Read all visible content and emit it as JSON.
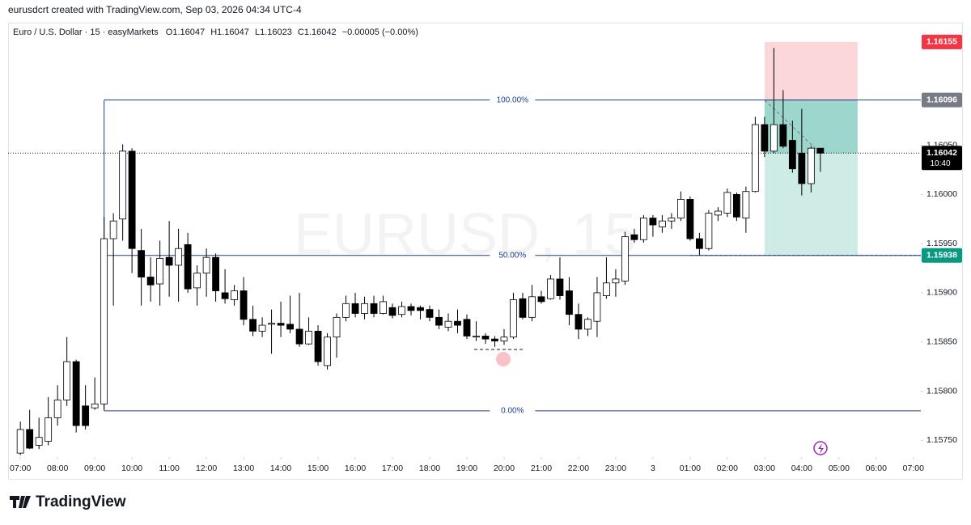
{
  "header": "eurusdcrt created with TradingView.com, Sep 03, 2026 04:34 UTC-4",
  "footer": "TradingView",
  "chart_data": {
    "type": "candlestick",
    "legend_symbol": "Euro / U.S. Dollar · 15 · easyMarkets",
    "legend_values": [
      "O1.16047",
      "H1.16047",
      "L1.16023",
      "C1.16042",
      "−0.00005 (−0.00%)"
    ],
    "watermark": "EURUSD, 15",
    "x": [
      7,
      7.25,
      7.5,
      7.75,
      8,
      8.25,
      8.5,
      8.75,
      9,
      9.25,
      9.5,
      9.75,
      10,
      10.25,
      10.5,
      10.75,
      11,
      11.25,
      11.5,
      11.75,
      12,
      12.25,
      12.5,
      12.75,
      13,
      13.25,
      13.5,
      13.75,
      14,
      14.25,
      14.5,
      14.75,
      15,
      15.25,
      15.5,
      15.75,
      16,
      16.25,
      16.5,
      16.75,
      17,
      17.25,
      17.5,
      17.75,
      18,
      18.25,
      18.5,
      18.75,
      19,
      19.25,
      19.5,
      19.75,
      20,
      20.25,
      20.5,
      20.75,
      21,
      21.25,
      21.5,
      21.75,
      22,
      22.25,
      22.5,
      22.75,
      23,
      23.25,
      23.5,
      23.75,
      24,
      24.25,
      24.5,
      24.75,
      25,
      25.25,
      25.5,
      25.75,
      26,
      26.25,
      26.5,
      26.75,
      27,
      27.25,
      27.5,
      27.75,
      28,
      28.25,
      28.5
    ],
    "open": [
      1.15737,
      1.15761,
      1.15745,
      1.15749,
      1.15773,
      1.15791,
      1.1583,
      1.15785,
      1.15783,
      1.15787,
      1.15955,
      1.15975,
      1.16044,
      1.15943,
      1.15916,
      1.15909,
      1.15936,
      1.15928,
      1.15949,
      1.15905,
      1.1592,
      1.15936,
      1.159,
      1.15893,
      1.15902,
      1.15873,
      1.15861,
      1.15868,
      1.15869,
      1.15868,
      1.15863,
      1.15848,
      1.15861,
      1.15826,
      1.15855,
      1.15875,
      1.15889,
      1.15879,
      1.15889,
      1.15879,
      1.15885,
      1.15878,
      1.15886,
      1.15885,
      1.15883,
      1.15875,
      1.15865,
      1.15871,
      1.15873,
      1.15855,
      1.15856,
      1.15853,
      1.15851,
      1.15855,
      1.15894,
      1.15875,
      1.15896,
      1.15894,
      1.15914,
      1.15902,
      1.15878,
      1.15863,
      1.15871,
      1.15897,
      1.1591,
      1.15912,
      1.15959,
      1.15954,
      1.15976,
      1.15967,
      1.15973,
      1.15976,
      1.15995,
      1.15955,
      1.15945,
      1.15979,
      1.15981,
      1.16,
      1.15976,
      1.16003,
      1.16071,
      1.16044,
      1.16071,
      1.16055,
      1.16042,
      1.16011,
      1.16047
    ],
    "high": [
      1.15769,
      1.15781,
      1.15773,
      1.15794,
      1.15806,
      1.15855,
      1.15832,
      1.15806,
      1.15814,
      1.15977,
      1.15981,
      1.16051,
      1.16047,
      1.15965,
      1.15936,
      1.15953,
      1.15973,
      1.15965,
      1.15961,
      1.15928,
      1.15945,
      1.1594,
      1.15924,
      1.15908,
      1.15916,
      1.15887,
      1.15875,
      1.15883,
      1.15891,
      1.15897,
      1.159,
      1.15875,
      1.15867,
      1.15859,
      1.15879,
      1.15897,
      1.159,
      1.15896,
      1.15897,
      1.15897,
      1.15889,
      1.15891,
      1.15889,
      1.15887,
      1.15887,
      1.15883,
      1.15879,
      1.15883,
      1.15878,
      1.15871,
      1.15859,
      1.15856,
      1.15863,
      1.159,
      1.159,
      1.15908,
      1.15902,
      1.15918,
      1.15936,
      1.15916,
      1.15889,
      1.15875,
      1.15916,
      1.15936,
      1.15924,
      1.15962,
      1.15965,
      1.15979,
      1.15979,
      1.15979,
      1.15981,
      1.16003,
      1.15998,
      1.15961,
      1.15984,
      1.15987,
      1.16006,
      1.16002,
      1.16008,
      1.16079,
      1.16079,
      1.16149,
      1.16106,
      1.16075,
      1.16087,
      1.16049,
      1.16047
    ],
    "low": [
      1.15735,
      1.15741,
      1.15741,
      1.15745,
      1.15765,
      1.15785,
      1.15758,
      1.15761,
      1.15781,
      1.15781,
      1.15887,
      1.15953,
      1.1592,
      1.15887,
      1.15891,
      1.15887,
      1.15896,
      1.15891,
      1.159,
      1.15887,
      1.15896,
      1.15891,
      1.15889,
      1.15887,
      1.15867,
      1.15856,
      1.15855,
      1.15838,
      1.15855,
      1.15859,
      1.15845,
      1.15847,
      1.15826,
      1.15822,
      1.15834,
      1.15871,
      1.15875,
      1.15873,
      1.15875,
      1.15878,
      1.15874,
      1.15875,
      1.15877,
      1.15873,
      1.15871,
      1.15863,
      1.15861,
      1.15859,
      1.15853,
      1.15851,
      1.15848,
      1.15845,
      1.15847,
      1.15853,
      1.15873,
      1.15871,
      1.15889,
      1.15893,
      1.15893,
      1.15867,
      1.15853,
      1.15856,
      1.15855,
      1.15894,
      1.15896,
      1.15908,
      1.15951,
      1.15951,
      1.15957,
      1.15961,
      1.15965,
      1.15973,
      1.15953,
      1.15938,
      1.15943,
      1.15973,
      1.15977,
      1.15973,
      1.15961,
      1.16002,
      1.16038,
      1.16042,
      1.16047,
      1.16022,
      1.15999,
      1.16002,
      1.16023
    ],
    "close": [
      1.15761,
      1.15742,
      1.15753,
      1.15773,
      1.15791,
      1.1583,
      1.15765,
      1.15765,
      1.15787,
      1.15955,
      1.15973,
      1.16044,
      1.15945,
      1.15916,
      1.15908,
      1.15935,
      1.15928,
      1.15945,
      1.15904,
      1.1592,
      1.15936,
      1.15902,
      1.15894,
      1.15902,
      1.15873,
      1.15861,
      1.15867,
      1.15869,
      1.15867,
      1.15863,
      1.15848,
      1.15861,
      1.1583,
      1.15855,
      1.15875,
      1.15889,
      1.15879,
      1.15889,
      1.15879,
      1.15891,
      1.15877,
      1.15886,
      1.15882,
      1.15882,
      1.15875,
      1.15867,
      1.15871,
      1.15867,
      1.15856,
      1.15856,
      1.15853,
      1.15851,
      1.15855,
      1.15893,
      1.15875,
      1.15896,
      1.15891,
      1.15914,
      1.15897,
      1.15878,
      1.15863,
      1.15873,
      1.159,
      1.1591,
      1.15914,
      1.15957,
      1.15954,
      1.15976,
      1.15969,
      1.15973,
      1.15976,
      1.15995,
      1.15955,
      1.15945,
      1.15981,
      1.15983,
      1.16002,
      1.15977,
      1.16003,
      1.16071,
      1.16044,
      1.16071,
      1.16049,
      1.16026,
      1.16011,
      1.16047,
      1.16042
    ],
    "up_color": "#ffffff",
    "down_color": "#000000",
    "xlim": [
      6.67,
      31.2
    ],
    "xticks": [
      {
        "value": 7,
        "label": "07:00"
      },
      {
        "value": 8,
        "label": "08:00"
      },
      {
        "value": 9,
        "label": "09:00"
      },
      {
        "value": 10,
        "label": "10:00"
      },
      {
        "value": 11,
        "label": "11:00"
      },
      {
        "value": 12,
        "label": "12:00"
      },
      {
        "value": 13,
        "label": "13:00"
      },
      {
        "value": 14,
        "label": "14:00"
      },
      {
        "value": 15,
        "label": "15:00"
      },
      {
        "value": 16,
        "label": "16:00"
      },
      {
        "value": 17,
        "label": "17:00"
      },
      {
        "value": 18,
        "label": "18:00"
      },
      {
        "value": 19,
        "label": "19:00"
      },
      {
        "value": 20,
        "label": "20:00"
      },
      {
        "value": 21,
        "label": "21:00"
      },
      {
        "value": 22,
        "label": "22:00"
      },
      {
        "value": 23,
        "label": "23:00"
      },
      {
        "value": 24,
        "label": "3"
      },
      {
        "value": 25,
        "label": "01:00"
      },
      {
        "value": 26,
        "label": "02:00"
      },
      {
        "value": 27,
        "label": "03:00"
      },
      {
        "value": 28,
        "label": "04:00"
      },
      {
        "value": 29,
        "label": "05:00"
      },
      {
        "value": 30,
        "label": "06:00"
      },
      {
        "value": 31,
        "label": "07:00"
      }
    ],
    "ylim": [
      1.15733,
      1.16173
    ],
    "yticks": [
      {
        "value": 1.1575,
        "label": "1.15750"
      },
      {
        "value": 1.158,
        "label": "1.15800"
      },
      {
        "value": 1.1585,
        "label": "1.15850"
      },
      {
        "value": 1.159,
        "label": "1.15900"
      },
      {
        "value": 1.1595,
        "label": "1.15950"
      },
      {
        "value": 1.16,
        "label": "1.16000"
      },
      {
        "value": 1.1605,
        "label": "1.16050"
      }
    ],
    "fib": {
      "x_start": 9.25,
      "color": "#1e3f8a",
      "levels": [
        {
          "value": 1.16096,
          "label": "100.00%"
        },
        {
          "value": 1.15938,
          "label": "50.00%"
        },
        {
          "value": 1.1578,
          "label": "0.00%"
        }
      ]
    },
    "position": {
      "x_start": 27,
      "x_end": 29.5,
      "target_line_start": 25,
      "stop": 1.16155,
      "entry": 1.16096,
      "target": 1.15938
    },
    "price_labels": [
      {
        "value": 1.16155,
        "color": "#f23645"
      },
      {
        "value": 1.16096,
        "color": "#787b86"
      },
      {
        "value": 1.16042,
        "color": "#000000",
        "countdown": "10:40"
      },
      {
        "value": 1.15938,
        "color": "#089981"
      }
    ]
  }
}
